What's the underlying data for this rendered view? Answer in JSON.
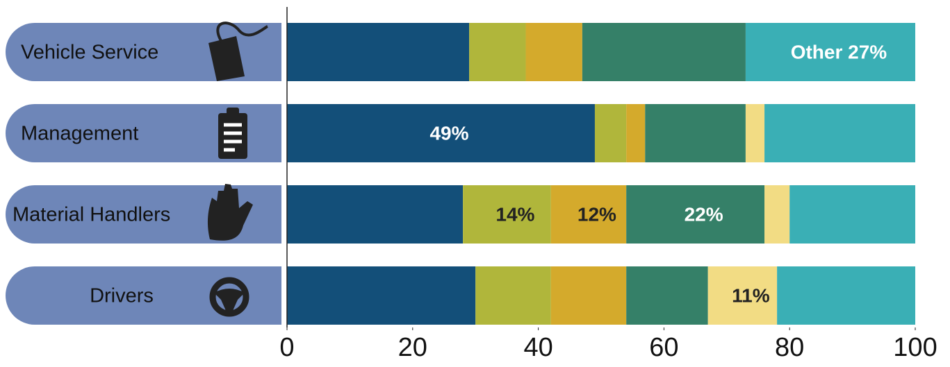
{
  "chart_data": {
    "type": "stacked-bar",
    "orientation": "horizontal",
    "categories": [
      "Vehicle Service",
      "Management",
      "Material Handlers",
      "Drivers"
    ],
    "series": [
      {
        "color": "#134f79",
        "values": [
          29,
          49,
          28,
          30
        ],
        "value_labels": [
          null,
          "49%",
          null,
          null
        ]
      },
      {
        "color": "#b0b63b",
        "values": [
          9,
          5,
          14,
          12
        ],
        "value_labels": [
          null,
          null,
          "14%",
          null
        ]
      },
      {
        "color": "#d4aa2c",
        "values": [
          9,
          3,
          12,
          12
        ],
        "value_labels": [
          null,
          null,
          "12%",
          null
        ]
      },
      {
        "color": "#358068",
        "values": [
          26,
          16,
          22,
          13
        ],
        "value_labels": [
          null,
          null,
          "22%",
          null
        ]
      },
      {
        "color": "#f2dc84",
        "values": [
          0,
          3,
          4,
          11
        ],
        "value_labels": [
          null,
          null,
          null,
          "11%"
        ]
      },
      {
        "color": "#3aafb5",
        "values": [
          27,
          24,
          20,
          22
        ],
        "value_labels": [
          "Other 27%",
          null,
          null,
          null
        ]
      }
    ],
    "category_color": "#6e86b8",
    "xlim": [
      0,
      100
    ],
    "xticks": [
      0,
      20,
      40,
      60,
      80,
      100
    ],
    "grid": false
  }
}
